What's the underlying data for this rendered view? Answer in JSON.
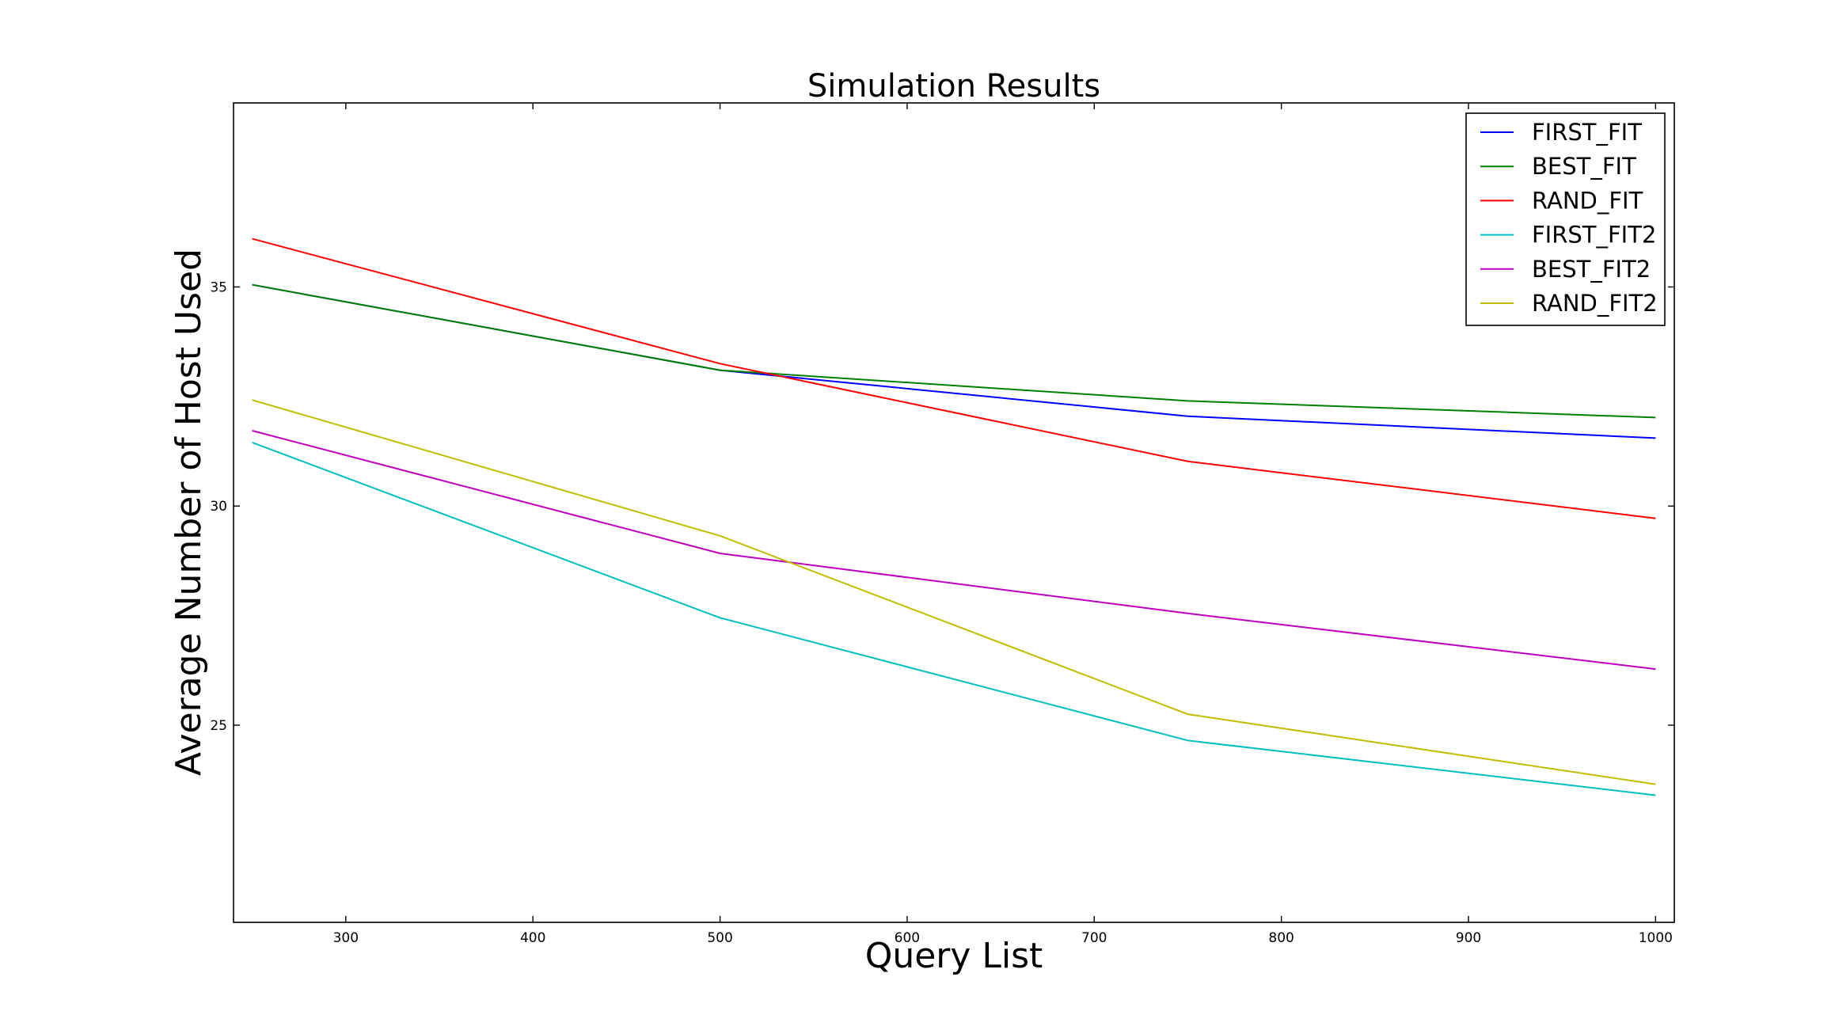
{
  "chart_data": {
    "type": "line",
    "title": "Simulation Results",
    "xlabel": "Query List",
    "ylabel": "Average Number of Host Used",
    "xlim": [
      240,
      1010
    ],
    "ylim": [
      20.5,
      39.2
    ],
    "xticks": [
      300,
      400,
      500,
      600,
      700,
      800,
      900,
      1000
    ],
    "yticks": [
      25,
      30,
      35
    ],
    "grid": false,
    "legend_position": "top-right",
    "x": [
      250,
      500,
      750,
      1000
    ],
    "series": [
      {
        "name": "FIRST_FIT",
        "color": "#0000ff",
        "values": [
          35.05,
          33.1,
          32.05,
          31.55
        ]
      },
      {
        "name": "BEST_FIT",
        "color": "#008000",
        "values": [
          35.05,
          33.1,
          32.4,
          32.02
        ]
      },
      {
        "name": "RAND_FIT",
        "color": "#ff0000",
        "values": [
          36.1,
          33.25,
          31.02,
          29.72
        ]
      },
      {
        "name": "FIRST_FIT2",
        "color": "#00bfbf",
        "values": [
          31.45,
          27.45,
          24.65,
          23.4
        ]
      },
      {
        "name": "BEST_FIT2",
        "color": "#bf00bf",
        "values": [
          31.72,
          28.92,
          27.55,
          26.28
        ]
      },
      {
        "name": "RAND_FIT2",
        "color": "#bfbf00",
        "values": [
          32.42,
          29.32,
          25.25,
          23.65
        ]
      }
    ]
  }
}
